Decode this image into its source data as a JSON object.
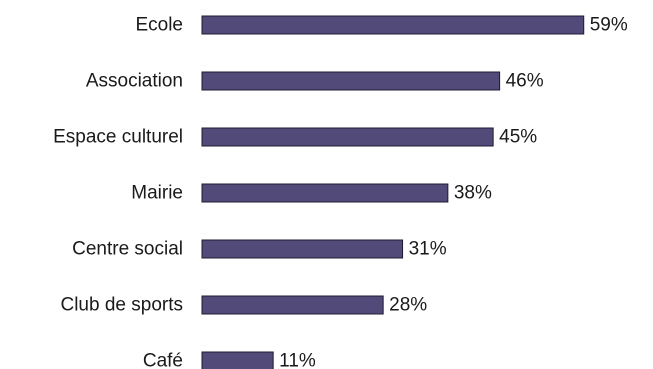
{
  "chart_data": {
    "type": "bar",
    "orientation": "horizontal",
    "categories": [
      "Ecole",
      "Association",
      "Espace culturel",
      "Mairie",
      "Centre social",
      "Club de sports",
      "Café"
    ],
    "values": [
      59,
      46,
      45,
      38,
      31,
      28,
      11
    ],
    "value_labels": [
      "59%",
      "46%",
      "45%",
      "38%",
      "31%",
      "28%",
      "11%"
    ],
    "unit": "%",
    "xlim": [
      0,
      100
    ],
    "grid": false,
    "legend": "none",
    "bar_color": "#524a79",
    "bar_edge_color": "#1f1b33"
  }
}
